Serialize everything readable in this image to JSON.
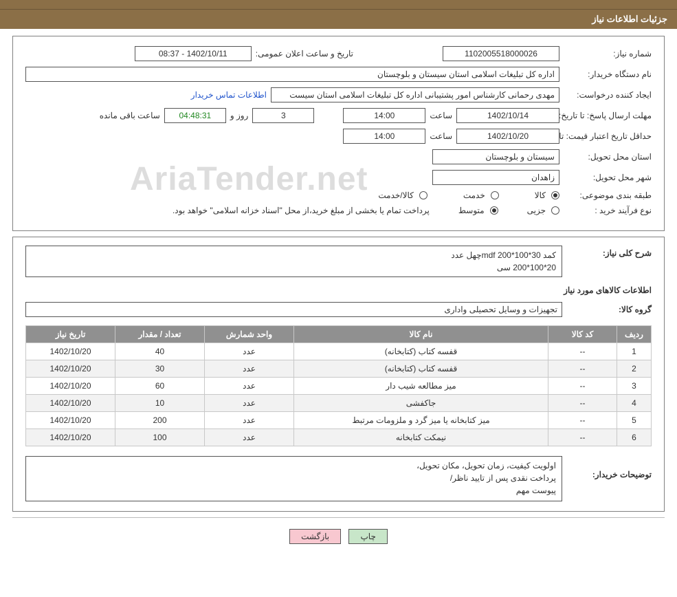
{
  "header": {
    "title": "جزئیات اطلاعات نیاز"
  },
  "fields": {
    "need_no_label": "شماره نیاز:",
    "need_no": "1102005518000026",
    "pub_datetime_label": "تاریخ و ساعت اعلان عمومی:",
    "pub_datetime": "1402/10/11 - 08:37",
    "buyer_org_label": "نام دستگاه خریدار:",
    "buyer_org": "اداره کل تبلیغات اسلامی استان سیستان و بلوچستان",
    "requester_label": "ایجاد کننده درخواست:",
    "requester": "مهدی رحمانی کارشناس امور پشتیبانی اداره کل تبلیغات اسلامی استان سیست",
    "contact_link": "اطلاعات تماس خریدار",
    "reply_deadline_label": "مهلت ارسال پاسخ: تا تاریخ:",
    "reply_date": "1402/10/14",
    "time_label": "ساعت",
    "reply_time": "14:00",
    "days_and_label": "روز و",
    "days_remaining": "3",
    "countdown": "04:48:31",
    "remaining_label": "ساعت باقی مانده",
    "price_validity_label": "حداقل تاریخ اعتبار قیمت: تا تاریخ:",
    "price_date": "1402/10/20",
    "price_time": "14:00",
    "delivery_province_label": "استان محل تحویل:",
    "delivery_province": "سیستان و بلوچستان",
    "delivery_city_label": "شهر محل تحویل:",
    "delivery_city": "زاهدان",
    "subject_class_label": "طبقه بندی موضوعی:",
    "opt_goods": "کالا",
    "opt_service": "خدمت",
    "opt_goods_service": "کالا/خدمت",
    "purchase_type_label": "نوع فرآیند خرید :",
    "opt_partial": "جزیی",
    "opt_medium": "متوسط",
    "purchase_note": "پرداخت تمام یا بخشی از مبلغ خرید،از محل \"اسناد خزانه اسلامی\" خواهد بود."
  },
  "need": {
    "desc_label": "شرح کلی نیاز:",
    "desc_line1": "کمد 30*100*200 mdfچهل عدد",
    "desc_line2": "20*100*200 سی",
    "items_title": "اطلاعات کالاهای مورد نیاز",
    "group_label": "گروه کالا:",
    "group": "تجهیزات و وسایل تحصیلی واداری"
  },
  "table": {
    "headers": {
      "row": "ردیف",
      "code": "کد کالا",
      "name": "نام کالا",
      "unit": "واحد شمارش",
      "qty": "تعداد / مقدار",
      "date": "تاریخ نیاز"
    },
    "rows": [
      {
        "row": "1",
        "code": "--",
        "name": "قفسه کتاب (کتابخانه)",
        "unit": "عدد",
        "qty": "40",
        "date": "1402/10/20"
      },
      {
        "row": "2",
        "code": "--",
        "name": "قفسه کتاب (کتابخانه)",
        "unit": "عدد",
        "qty": "30",
        "date": "1402/10/20"
      },
      {
        "row": "3",
        "code": "--",
        "name": "میز مطالعه شیب دار",
        "unit": "عدد",
        "qty": "60",
        "date": "1402/10/20"
      },
      {
        "row": "4",
        "code": "--",
        "name": "جاکفشی",
        "unit": "عدد",
        "qty": "10",
        "date": "1402/10/20"
      },
      {
        "row": "5",
        "code": "--",
        "name": "میز کتابخانه یا میز گرد و ملزومات مرتبط",
        "unit": "عدد",
        "qty": "200",
        "date": "1402/10/20"
      },
      {
        "row": "6",
        "code": "--",
        "name": "نیمکت کتابخانه",
        "unit": "عدد",
        "qty": "100",
        "date": "1402/10/20"
      }
    ]
  },
  "buyer_notes": {
    "label": "توضیحات خریدار:",
    "line1": "اولویت کیفیت، زمان تحویل، مکان تحویل،",
    "line2": "پرداخت نقدی پس از تایید ناظر/",
    "line3": "پیوست مهم"
  },
  "buttons": {
    "print": "چاپ",
    "back": "بازگشت"
  },
  "watermark": {
    "text": "AriaTender.net"
  },
  "style": {
    "brand_bg": "#8b6f47",
    "th_bg": "#909090",
    "link_color": "#2255cc",
    "pink": "#f8c8d0",
    "green": "#c8e6c9"
  }
}
